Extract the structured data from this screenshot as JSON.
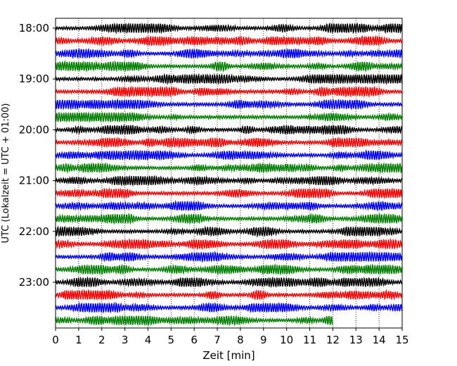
{
  "chart_data": {
    "type": "line",
    "title": "",
    "xlabel": "Zeit  [min]",
    "ylabel": "UTC (Lokalzeit = UTC + 01:00)",
    "xlim": [
      0,
      15
    ],
    "xticks": [
      0,
      1,
      2,
      3,
      4,
      5,
      6,
      7,
      8,
      9,
      10,
      11,
      12,
      13,
      14,
      15
    ],
    "yticks": [
      "18:00",
      "19:00",
      "20:00",
      "21:00",
      "22:00",
      "23:00"
    ],
    "grid": "vertical dotted at each minute",
    "trace_interval_minutes": 15,
    "first_trace_utc": "18:00",
    "last_trace_end_minute": 12,
    "trace_colors": [
      "#000000",
      "#ff0000",
      "#0000ff",
      "#008000"
    ],
    "traces": [
      "18:00",
      "18:15",
      "18:30",
      "18:45",
      "19:00",
      "19:15",
      "19:30",
      "19:45",
      "20:00",
      "20:15",
      "20:30",
      "20:45",
      "21:00",
      "21:15",
      "21:30",
      "21:45",
      "22:00",
      "22:15",
      "22:30",
      "22:45",
      "23:00",
      "23:15",
      "23:30",
      "23:45"
    ]
  }
}
